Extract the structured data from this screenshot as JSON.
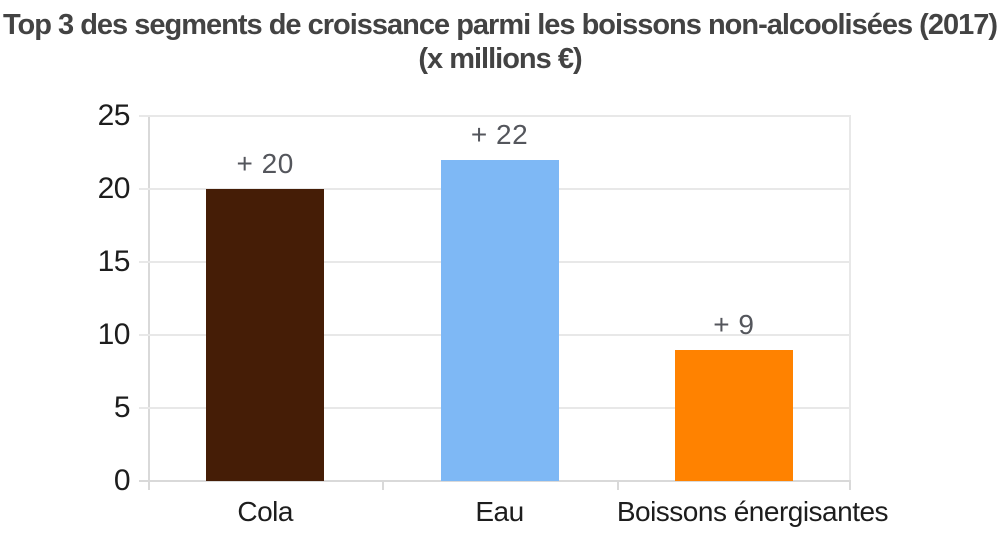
{
  "title": {
    "line1": "Top 3 des segments de croissance parmi les boissons non-alcoolisées (2017)",
    "line2": "(x millions €)"
  },
  "chart_data": {
    "type": "bar",
    "title": "Top 3 des segments de croissance parmi les boissons non-alcoolisées (2017) (x millions €)",
    "categories": [
      "Cola",
      "Eau",
      "Boissons énergisantes"
    ],
    "values": [
      20,
      22,
      9
    ],
    "value_labels": [
      "+ 20",
      "+ 22",
      "+ 9"
    ],
    "bar_colors": [
      "#451d06",
      "#7eb8f5",
      "#ff8200"
    ],
    "xlabel": "",
    "ylabel": "",
    "ylim": [
      0,
      25
    ],
    "yticks": [
      0,
      5,
      10,
      15,
      20,
      25
    ],
    "grid": true,
    "legend_position": "none"
  },
  "colors": {
    "background": "#ffffff",
    "title_text": "#434343",
    "axis_tick_text": "#1d1d1d",
    "value_label_text": "#54565c",
    "gridline": "#e8e8e8",
    "axis_line": "#d9d9d9"
  }
}
